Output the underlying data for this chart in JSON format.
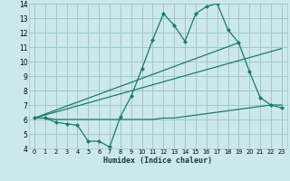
{
  "xlabel": "Humidex (Indice chaleur)",
  "bg_color": "#cce8ea",
  "grid_color": "#a0c8cc",
  "line_color": "#1a7a6e",
  "xlim": [
    -0.5,
    23.5
  ],
  "ylim": [
    4,
    14
  ],
  "xticks": [
    0,
    1,
    2,
    3,
    4,
    5,
    6,
    7,
    8,
    9,
    10,
    11,
    12,
    13,
    14,
    15,
    16,
    17,
    18,
    19,
    20,
    21,
    22,
    23
  ],
  "yticks": [
    4,
    5,
    6,
    7,
    8,
    9,
    10,
    11,
    12,
    13,
    14
  ],
  "series1_x": [
    0,
    1,
    2,
    3,
    4,
    5,
    6,
    7,
    8,
    9,
    10,
    11,
    12,
    13,
    14,
    15,
    16,
    17,
    18,
    19,
    20,
    21,
    22,
    23
  ],
  "series1_y": [
    6.1,
    6.1,
    5.8,
    5.7,
    5.6,
    4.5,
    4.5,
    4.1,
    6.2,
    7.6,
    9.5,
    11.5,
    13.3,
    12.5,
    11.4,
    13.3,
    13.8,
    14.0,
    12.2,
    11.3,
    9.3,
    7.5,
    7.0,
    6.8
  ],
  "series2_x": [
    0,
    1,
    2,
    3,
    4,
    5,
    6,
    7,
    8,
    9,
    10,
    11,
    12,
    13,
    14,
    15,
    16,
    17,
    18,
    19,
    20,
    21,
    22,
    23
  ],
  "series2_y": [
    6.1,
    6.1,
    6.0,
    6.0,
    6.0,
    6.0,
    6.0,
    6.0,
    6.0,
    6.0,
    6.0,
    6.0,
    6.1,
    6.1,
    6.2,
    6.3,
    6.4,
    6.5,
    6.6,
    6.7,
    6.8,
    6.9,
    7.0,
    7.0
  ],
  "series3_x": [
    0,
    23
  ],
  "series3_y": [
    6.1,
    10.9
  ],
  "series4_x": [
    0,
    19
  ],
  "series4_y": [
    6.1,
    11.3
  ]
}
